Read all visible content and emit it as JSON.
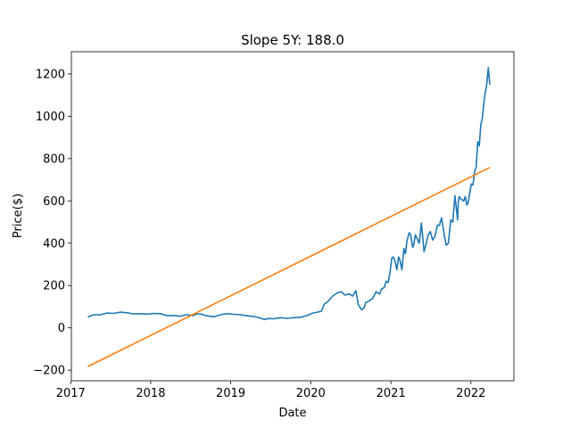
{
  "chart_data": {
    "type": "line",
    "title": "Slope 5Y: 188.0",
    "xlabel": "Date",
    "ylabel": "Price($)",
    "x_ticks": [
      "2017",
      "2018",
      "2019",
      "2020",
      "2021",
      "2022"
    ],
    "y_ticks": [
      "−200",
      "0",
      "200",
      "400",
      "600",
      "800",
      "1000",
      "1200"
    ],
    "xlim": [
      "2017-01-04",
      "2022-07-16"
    ],
    "ylim": [
      -250,
      1305
    ],
    "grid": false,
    "colors": {
      "price": "#1f77b4",
      "trend": "#ff7f0e"
    },
    "series": [
      {
        "role": "price",
        "x": [
          "2017-03-20",
          "2017-04-15",
          "2017-05-15",
          "2017-06-15",
          "2017-07-15",
          "2017-08-15",
          "2017-09-15",
          "2017-10-15",
          "2017-11-15",
          "2017-12-15",
          "2018-01-15",
          "2018-02-15",
          "2018-03-15",
          "2018-04-15",
          "2018-05-15",
          "2018-06-15",
          "2018-07-15",
          "2018-07-25",
          "2018-08-15",
          "2018-09-01",
          "2018-09-15",
          "2018-10-15",
          "2018-11-15",
          "2018-12-15",
          "2019-01-15",
          "2019-02-15",
          "2019-03-15",
          "2019-04-15",
          "2019-05-15",
          "2019-06-03",
          "2019-06-20",
          "2019-07-15",
          "2019-08-15",
          "2019-09-15",
          "2019-10-15",
          "2019-11-15",
          "2019-12-15",
          "2020-01-10",
          "2020-02-05",
          "2020-02-20",
          "2020-03-01",
          "2020-03-20",
          "2020-04-10",
          "2020-05-01",
          "2020-05-20",
          "2020-06-05",
          "2020-06-25",
          "2020-07-10",
          "2020-07-25",
          "2020-08-05",
          "2020-08-20",
          "2020-09-01",
          "2020-09-08",
          "2020-09-20",
          "2020-10-10",
          "2020-10-25",
          "2020-11-10",
          "2020-11-20",
          "2020-12-01",
          "2020-12-10",
          "2020-12-20",
          "2020-12-28",
          "2021-01-05",
          "2021-01-12",
          "2021-01-20",
          "2021-01-28",
          "2021-02-05",
          "2021-02-10",
          "2021-02-20",
          "2021-03-01",
          "2021-03-08",
          "2021-03-15",
          "2021-03-25",
          "2021-04-01",
          "2021-04-10",
          "2021-04-15",
          "2021-04-22",
          "2021-05-01",
          "2021-05-10",
          "2021-05-20",
          "2021-06-01",
          "2021-06-10",
          "2021-06-20",
          "2021-06-30",
          "2021-07-10",
          "2021-07-20",
          "2021-08-01",
          "2021-08-10",
          "2021-08-20",
          "2021-09-01",
          "2021-09-10",
          "2021-09-20",
          "2021-10-01",
          "2021-10-10",
          "2021-10-20",
          "2021-10-27",
          "2021-11-01",
          "2021-11-04",
          "2021-11-08",
          "2021-11-15",
          "2021-11-22",
          "2021-11-29",
          "2021-12-06",
          "2021-12-13",
          "2021-12-20",
          "2021-12-27",
          "2022-01-03",
          "2022-01-10",
          "2022-01-18",
          "2022-01-25",
          "2022-02-01",
          "2022-02-08",
          "2022-02-15",
          "2022-02-22",
          "2022-03-01",
          "2022-03-07",
          "2022-03-14",
          "2022-03-21",
          "2022-03-28"
        ],
        "y": [
          51,
          62,
          62,
          70,
          68,
          74,
          71,
          66,
          67,
          65,
          68,
          67,
          58,
          58,
          55,
          62,
          58,
          65,
          66,
          60,
          57,
          52,
          62,
          67,
          64,
          62,
          57,
          54,
          47,
          39,
          44,
          43,
          48,
          45,
          48,
          50,
          58,
          70,
          75,
          80,
          110,
          125,
          150,
          165,
          170,
          155,
          160,
          150,
          175,
          110,
          85,
          95,
          120,
          125,
          140,
          170,
          160,
          185,
          190,
          220,
          215,
          265,
          330,
          335,
          315,
          275,
          335,
          325,
          275,
          375,
          350,
          410,
          450,
          440,
          380,
          390,
          440,
          420,
          400,
          495,
          360,
          395,
          440,
          455,
          415,
          430,
          485,
          485,
          520,
          440,
          390,
          400,
          510,
          500,
          625,
          560,
          510,
          590,
          620,
          610,
          605,
          600,
          620,
          580,
          595,
          640,
          680,
          675,
          740,
          760,
          880,
          860,
          960,
          990,
          1060,
          1110,
          1150,
          1230,
          1150
        ]
      },
      {
        "role": "trend",
        "x": [
          "2017-03-20",
          "2022-03-28"
        ],
        "y": [
          -183,
          758
        ]
      }
    ]
  }
}
